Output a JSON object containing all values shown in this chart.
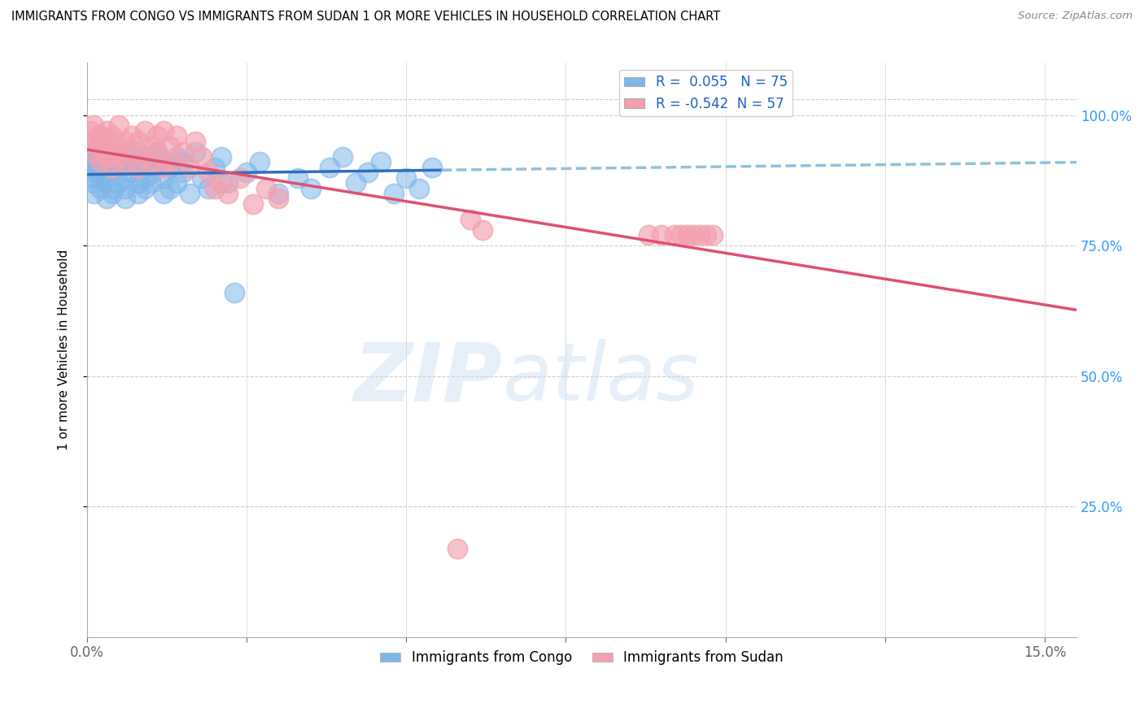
{
  "title": "IMMIGRANTS FROM CONGO VS IMMIGRANTS FROM SUDAN 1 OR MORE VEHICLES IN HOUSEHOLD CORRELATION CHART",
  "source": "Source: ZipAtlas.com",
  "ylabel": "1 or more Vehicles in Household",
  "legend_label_congo": "Immigrants from Congo",
  "legend_label_sudan": "Immigrants from Sudan",
  "congo_color": "#7EB6E8",
  "sudan_color": "#F4A0B0",
  "congo_R": 0.055,
  "congo_N": 75,
  "sudan_R": -0.542,
  "sudan_N": 57,
  "congo_line_color": "#2F6EBF",
  "sudan_line_color": "#E05070",
  "congo_line_dashed_color": "#90BFDF",
  "xlim": [
    0.0,
    0.155
  ],
  "ylim": [
    0.0,
    1.1
  ],
  "congo_x": [
    0.0005,
    0.0008,
    0.001,
    0.001,
    0.001,
    0.001,
    0.001,
    0.001,
    0.001,
    0.002,
    0.002,
    0.002,
    0.002,
    0.002,
    0.002,
    0.003,
    0.003,
    0.003,
    0.003,
    0.003,
    0.004,
    0.004,
    0.004,
    0.004,
    0.005,
    0.005,
    0.005,
    0.005,
    0.006,
    0.006,
    0.006,
    0.007,
    0.007,
    0.007,
    0.008,
    0.008,
    0.008,
    0.009,
    0.009,
    0.009,
    0.01,
    0.01,
    0.01,
    0.011,
    0.011,
    0.012,
    0.012,
    0.013,
    0.013,
    0.014,
    0.014,
    0.015,
    0.015,
    0.016,
    0.017,
    0.018,
    0.019,
    0.02,
    0.021,
    0.022,
    0.023,
    0.025,
    0.027,
    0.03,
    0.033,
    0.035,
    0.038,
    0.04,
    0.042,
    0.044,
    0.046,
    0.048,
    0.05,
    0.052,
    0.054
  ],
  "congo_y": [
    0.92,
    0.9,
    0.88,
    0.85,
    0.95,
    0.93,
    0.87,
    0.91,
    0.89,
    0.86,
    0.94,
    0.92,
    0.88,
    0.96,
    0.9,
    0.84,
    0.93,
    0.91,
    0.88,
    0.95,
    0.86,
    0.89,
    0.92,
    0.85,
    0.91,
    0.87,
    0.93,
    0.9,
    0.88,
    0.86,
    0.84,
    0.92,
    0.89,
    0.91,
    0.87,
    0.93,
    0.85,
    0.88,
    0.9,
    0.86,
    0.92,
    0.89,
    0.87,
    0.91,
    0.93,
    0.85,
    0.88,
    0.86,
    0.9,
    0.92,
    0.87,
    0.89,
    0.91,
    0.85,
    0.93,
    0.88,
    0.86,
    0.9,
    0.92,
    0.87,
    0.66,
    0.89,
    0.91,
    0.85,
    0.88,
    0.86,
    0.9,
    0.92,
    0.87,
    0.89,
    0.91,
    0.85,
    0.88,
    0.86,
    0.9
  ],
  "sudan_x": [
    0.0005,
    0.001,
    0.001,
    0.001,
    0.002,
    0.002,
    0.002,
    0.003,
    0.003,
    0.003,
    0.004,
    0.004,
    0.004,
    0.005,
    0.005,
    0.005,
    0.006,
    0.006,
    0.007,
    0.007,
    0.008,
    0.008,
    0.009,
    0.009,
    0.01,
    0.01,
    0.011,
    0.011,
    0.012,
    0.012,
    0.013,
    0.013,
    0.014,
    0.015,
    0.016,
    0.017,
    0.018,
    0.019,
    0.02,
    0.021,
    0.022,
    0.024,
    0.026,
    0.028,
    0.03,
    0.058,
    0.06,
    0.062,
    0.088,
    0.09,
    0.092,
    0.093,
    0.094,
    0.095,
    0.096,
    0.097,
    0.098
  ],
  "sudan_y": [
    0.97,
    0.95,
    0.93,
    0.98,
    0.91,
    0.96,
    0.94,
    0.92,
    0.97,
    0.95,
    0.93,
    0.9,
    0.96,
    0.94,
    0.92,
    0.98,
    0.95,
    0.91,
    0.96,
    0.93,
    0.9,
    0.95,
    0.92,
    0.97,
    0.94,
    0.91,
    0.96,
    0.93,
    0.9,
    0.97,
    0.94,
    0.91,
    0.96,
    0.93,
    0.9,
    0.95,
    0.92,
    0.89,
    0.86,
    0.87,
    0.85,
    0.88,
    0.83,
    0.86,
    0.84,
    0.17,
    0.8,
    0.78,
    0.77,
    0.77,
    0.77,
    0.77,
    0.77,
    0.77,
    0.77,
    0.77,
    0.77
  ]
}
